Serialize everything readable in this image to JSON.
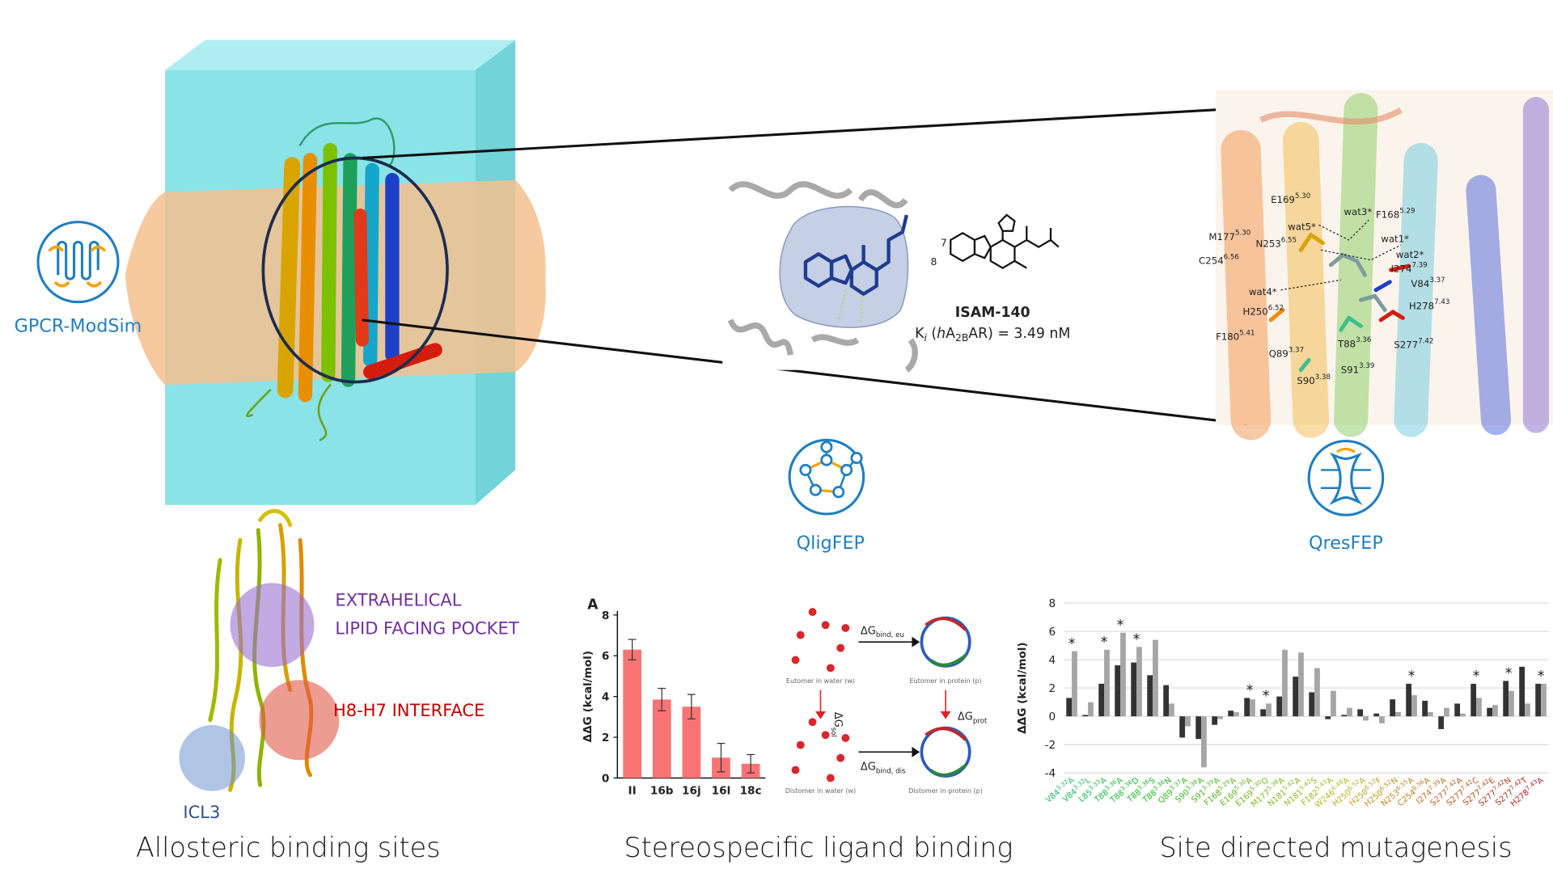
{
  "brand": "GPCR-ModSim",
  "tools": [
    "QligFEP",
    "QresFEP"
  ],
  "zoom": {
    "ligand": {
      "atom_labels": [
        "7",
        "8"
      ],
      "name": "ISAM-140",
      "ki": [
        "K",
        "i",
        " (",
        "h",
        "A",
        "2B",
        "AR) = 3.49 nM"
      ]
    },
    "residues": [
      {
        "name": "E169",
        "bw": "5.30"
      },
      {
        "name": "F168",
        "bw": "5.29"
      },
      {
        "name": "M177",
        "bw": "5.30"
      },
      {
        "name": "N253",
        "bw": "6.55"
      },
      {
        "name": "C254",
        "bw": "6.56"
      },
      {
        "name": "I274",
        "bw": "7.39"
      },
      {
        "name": "V84",
        "bw": "3.37"
      },
      {
        "name": "H278",
        "bw": "7.43"
      },
      {
        "name": "H250",
        "bw": "6.52"
      },
      {
        "name": "S277",
        "bw": "7.42"
      },
      {
        "name": "F180",
        "bw": "5.41"
      },
      {
        "name": "Q89",
        "bw": "3.37"
      },
      {
        "name": "T88",
        "bw": "3.36"
      },
      {
        "name": "S90",
        "bw": "3.38"
      },
      {
        "name": "S91",
        "bw": "3.39"
      }
    ],
    "waters": [
      "wat3*",
      "wat5*",
      "wat1*",
      "wat2*",
      "wat4*"
    ]
  },
  "allosteric": {
    "sites": [
      "EXTRAHELICAL",
      "LIPID FACING POCKET",
      "H8-H7 INTERFACE",
      "ICL3"
    ],
    "caption": "Allosteric binding sites"
  },
  "stereo": {
    "caption": "Stereospecific ligand binding",
    "states": [
      "Eutomer in water (w)",
      "Eutomer in protein (p)",
      "Distomer in water (w)",
      "Distomer in protein (p)"
    ],
    "arrows": [
      {
        "main": "ΔG",
        "sub": "bind, eu"
      },
      {
        "main": "ΔG",
        "sub": "sol"
      },
      {
        "main": "ΔG",
        "sub": "prot"
      },
      {
        "main": "ΔG",
        "sub": "bind, dis"
      }
    ]
  },
  "mutagenesis": {
    "caption": "Site directed mutagenesis"
  },
  "chart_data": [
    {
      "type": "bar",
      "panel": "A",
      "ylabel": "ΔΔG (kcal/mol)",
      "categories": [
        "II",
        "16b",
        "16j",
        "16l",
        "18c"
      ],
      "values": [
        6.3,
        3.85,
        3.5,
        1.0,
        0.7
      ],
      "errors": [
        0.5,
        0.55,
        0.6,
        0.7,
        0.45
      ],
      "color": "#f87474",
      "ylim": [
        0,
        8
      ],
      "yticks": [
        0,
        2,
        4,
        6,
        8
      ],
      "grid": false
    },
    {
      "type": "bar",
      "ylabel": "ΔΔG (kcal/mol)",
      "categories": [
        {
          "res": "V84",
          "bw": "3.32",
          "mut": "A"
        },
        {
          "res": "V84",
          "bw": "3.32",
          "mut": "L"
        },
        {
          "res": "L85",
          "bw": "3.33",
          "mut": "A"
        },
        {
          "res": "T88",
          "bw": "3.36",
          "mut": "A"
        },
        {
          "res": "T88",
          "bw": "3.36",
          "mut": "D"
        },
        {
          "res": "T88",
          "bw": "3.36",
          "mut": "S"
        },
        {
          "res": "T88",
          "bw": "3.36",
          "mut": "N"
        },
        {
          "res": "Q89",
          "bw": "3.37",
          "mut": "A"
        },
        {
          "res": "S90",
          "bw": "3.38",
          "mut": "A"
        },
        {
          "res": "S91",
          "bw": "3.39",
          "mut": "A"
        },
        {
          "res": "F168",
          "bw": "5.29",
          "mut": "A"
        },
        {
          "res": "E169",
          "bw": "5.30",
          "mut": "A"
        },
        {
          "res": "E169",
          "bw": "5.30",
          "mut": "Q"
        },
        {
          "res": "M177",
          "bw": "5.38",
          "mut": "A"
        },
        {
          "res": "N181",
          "bw": "5.42",
          "mut": "A"
        },
        {
          "res": "N181",
          "bw": "5.42",
          "mut": "S"
        },
        {
          "res": "F182",
          "bw": "5.43",
          "mut": "A"
        },
        {
          "res": "W246",
          "bw": "6.48",
          "mut": "A"
        },
        {
          "res": "H250",
          "bw": "6.52",
          "mut": "A"
        },
        {
          "res": "H250",
          "bw": "6.52",
          "mut": "F"
        },
        {
          "res": "H250",
          "bw": "6.52",
          "mut": "N"
        },
        {
          "res": "N253",
          "bw": "6.55",
          "mut": "A"
        },
        {
          "res": "C254",
          "bw": "6.56",
          "mut": "A"
        },
        {
          "res": "I274",
          "bw": "7.39",
          "mut": "A"
        },
        {
          "res": "S277",
          "bw": "7.42",
          "mut": "A"
        },
        {
          "res": "S277",
          "bw": "7.42",
          "mut": "C"
        },
        {
          "res": "S277",
          "bw": "7.42",
          "mut": "E"
        },
        {
          "res": "S277",
          "bw": "7.42",
          "mut": "N"
        },
        {
          "res": "S277",
          "bw": "7.42",
          "mut": "T"
        },
        {
          "res": "H278",
          "bw": "7.43",
          "mut": "A"
        }
      ],
      "series": [
        {
          "color": "#333333",
          "values": [
            1.3,
            0.1,
            2.3,
            3.6,
            3.8,
            2.9,
            2.2,
            -1.5,
            -1.6,
            -0.6,
            0.4,
            1.3,
            0.5,
            1.4,
            2.8,
            1.7,
            -0.2,
            0.1,
            0.5,
            0.2,
            1.2,
            2.3,
            1.1,
            -0.9,
            0.9,
            2.3,
            0.6,
            2.5,
            3.5,
            2.3
          ]
        },
        {
          "color": "#a6a6a6",
          "values": [
            4.6,
            1.0,
            4.7,
            5.9,
            4.9,
            5.4,
            0.9,
            -0.7,
            -3.6,
            -0.2,
            0.3,
            1.2,
            0.9,
            4.7,
            4.5,
            3.4,
            1.8,
            0.6,
            -0.3,
            -0.5,
            0.3,
            1.5,
            0.3,
            0.6,
            0.2,
            1.3,
            0.8,
            1.8,
            0.9,
            2.3
          ]
        }
      ],
      "ylim": [
        -4,
        8
      ],
      "yticks": [
        -4,
        -2,
        0,
        2,
        4,
        6,
        8
      ],
      "grid": true,
      "annotations": [
        {
          "text": "*",
          "category": 0
        },
        {
          "text": "*",
          "category": 2
        },
        {
          "text": "*",
          "category": 3
        },
        {
          "text": "*",
          "category": 4
        },
        {
          "text": "*",
          "category": 11
        },
        {
          "text": "*",
          "category": 12
        },
        {
          "text": "*",
          "category": 21
        },
        {
          "text": "*",
          "category": 25
        },
        {
          "text": "*",
          "category": 27
        },
        {
          "text": "*",
          "category": 29
        }
      ]
    }
  ]
}
